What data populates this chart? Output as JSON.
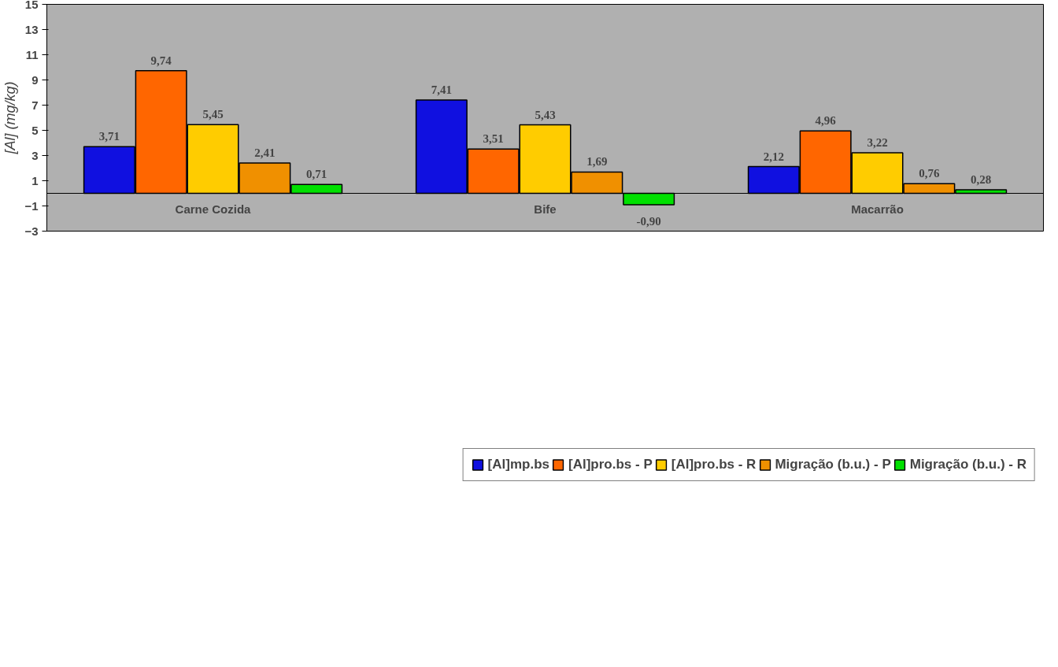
{
  "chart_data": {
    "type": "bar",
    "ylabel": "[Al] (mg/kg)",
    "categories": [
      "Carne Cozida",
      "Bife",
      "Macarrão"
    ],
    "series": [
      {
        "name": "[Al]mp.bs",
        "color": "#1010e0",
        "values": [
          3.71,
          7.41,
          2.12
        ],
        "value_labels": [
          "3,71",
          "7,41",
          "2,12"
        ]
      },
      {
        "name": "[Al]pro.bs - P",
        "color": "#ff6600",
        "values": [
          9.74,
          3.51,
          4.96
        ],
        "value_labels": [
          "9,74",
          "3,51",
          "4,96"
        ]
      },
      {
        "name": "[Al]pro.bs - R",
        "color": "#ffcc00",
        "values": [
          5.45,
          5.43,
          3.22
        ],
        "value_labels": [
          "5,45",
          "5,43",
          "3,22"
        ]
      },
      {
        "name": "Migração (b.u.) - P",
        "color": "#f09000",
        "values": [
          2.41,
          1.69,
          0.76
        ],
        "value_labels": [
          "2,41",
          "1,69",
          "0,76"
        ]
      },
      {
        "name": "Migração (b.u.) - R",
        "color": "#00e000",
        "values": [
          0.71,
          -0.9,
          0.28
        ],
        "value_labels": [
          "0,71",
          "-0,90",
          "0,28"
        ]
      }
    ],
    "ylim": [
      -3,
      15
    ],
    "yticks": [
      -3,
      -1,
      1,
      3,
      5,
      7,
      9,
      11,
      13,
      15
    ],
    "grid": false,
    "legend": "bottom"
  }
}
